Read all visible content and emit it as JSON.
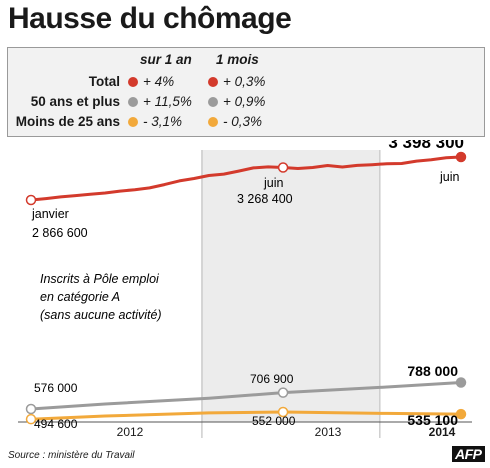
{
  "title": "Hausse du chômage",
  "legend": {
    "head_year": "sur 1 an",
    "head_month": "1 mois",
    "rows": [
      {
        "label": "Total",
        "year": "+ 4%",
        "month": "+ 0,3%",
        "color": "#d33a2c"
      },
      {
        "label": "50 ans et plus",
        "year": "+ 11,5%",
        "month": "+ 0,9%",
        "color": "#9b9b9b"
      },
      {
        "label": "Moins de 25 ans",
        "year": "- 3,1%",
        "month": "- 0,3%",
        "color": "#f2a93b"
      }
    ]
  },
  "annotations": {
    "total_start_month": "janvier",
    "total_start_value": "2 866 600",
    "total_mid_month": "juin",
    "total_mid_value": "3 268 400",
    "total_end_value": "3 398 300",
    "total_end_month": "juin",
    "over50_start_value": "576 000",
    "over50_mid_value": "706 900",
    "over50_end_value": "788 000",
    "under25_start_value": "494 600",
    "under25_mid_value": "552 000",
    "under25_end_value": "535 100",
    "note_line1": "Inscrits à Pôle emploi",
    "note_line2": "en catégorie A",
    "note_line3": "(sans aucune activité)"
  },
  "source": "Source : ministère du Travail",
  "logo": "AFP",
  "chart_data": {
    "type": "line",
    "x_unit": "month",
    "categories": [
      "2012",
      "2013",
      "2014"
    ],
    "x_range": [
      "2012-01",
      "2014-06"
    ],
    "shaded_periods": [
      [
        "2013-01",
        "2013-12"
      ]
    ],
    "series": [
      {
        "name": "Total",
        "color": "#d33a2c",
        "x": [
          "2012-01",
          "2012-02",
          "2012-03",
          "2012-04",
          "2012-05",
          "2012-06",
          "2012-07",
          "2012-08",
          "2012-09",
          "2012-10",
          "2012-11",
          "2012-12",
          "2013-01",
          "2013-02",
          "2013-03",
          "2013-04",
          "2013-05",
          "2013-06",
          "2013-07",
          "2013-08",
          "2013-09",
          "2013-10",
          "2013-11",
          "2013-12",
          "2014-01",
          "2014-02",
          "2014-03",
          "2014-04",
          "2014-05",
          "2014-06"
        ],
        "values": [
          2866600,
          2884000,
          2905000,
          2921000,
          2937000,
          2953000,
          2977000,
          2994000,
          3016000,
          3057000,
          3103000,
          3133000,
          3169000,
          3187000,
          3224000,
          3264000,
          3276000,
          3268400,
          3256000,
          3269000,
          3293000,
          3275000,
          3294000,
          3303000,
          3316000,
          3318000,
          3348000,
          3365000,
          3388000,
          3398300
        ]
      },
      {
        "name": "50 ans et plus",
        "color": "#9b9b9b",
        "x": [
          "2012-01",
          "2012-06",
          "2013-01",
          "2013-06",
          "2014-01",
          "2014-06"
        ],
        "values": [
          576000,
          616000,
          662000,
          706900,
          752000,
          788000
        ]
      },
      {
        "name": "Moins de 25 ans",
        "color": "#f2a93b",
        "x": [
          "2012-01",
          "2012-06",
          "2013-01",
          "2013-06",
          "2014-01",
          "2014-06"
        ],
        "values": [
          494600,
          520000,
          545000,
          552000,
          541000,
          535100
        ]
      }
    ]
  }
}
